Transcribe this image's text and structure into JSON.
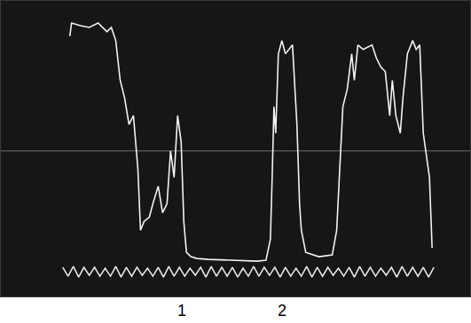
{
  "chart_data": {
    "type": "line",
    "xlim": [
      0,
      531
    ],
    "ylim": [
      0,
      335
    ],
    "xticks": [],
    "yticks": [
      165
    ],
    "grid": true,
    "tick_labels": false,
    "series": [
      {
        "color": "#f2f2f2",
        "x": [
          78,
          80,
          90,
          100,
          110,
          120,
          125,
          130,
          135,
          140,
          145,
          150,
          155,
          158,
          162,
          168,
          172,
          178,
          183,
          188,
          192,
          196,
          200,
          204,
          207,
          210,
          215,
          222,
          235,
          260,
          290,
          300,
          305,
          307,
          309,
          311,
          314,
          318,
          322,
          330,
          335,
          338,
          340,
          345,
          360,
          375,
          380,
          383,
          387,
          392,
          397,
          400,
          404,
          410,
          420,
          425,
          430,
          435,
          440,
          443,
          447,
          452,
          455,
          460,
          466,
          470,
          474,
          478,
          482,
          485,
          488
        ],
        "values": [
          295,
          310,
          307,
          305,
          310,
          300,
          305,
          290,
          245,
          225,
          195,
          205,
          145,
          75,
          85,
          90,
          105,
          125,
          95,
          105,
          165,
          135,
          205,
          175,
          85,
          50,
          45,
          43,
          42,
          41,
          40,
          41,
          65,
          135,
          215,
          185,
          275,
          290,
          275,
          285,
          195,
          105,
          75,
          50,
          45,
          47,
          75,
          135,
          215,
          235,
          275,
          245,
          285,
          280,
          285,
          270,
          260,
          255,
          205,
          245,
          205,
          185,
          225,
          275,
          290,
          280,
          285,
          185,
          155,
          135,
          55
        ]
      },
      {
        "color": "#e6e6e6",
        "x": [
          70,
          76,
          82,
          88,
          94,
          100,
          106,
          112,
          118,
          124,
          130,
          136,
          142,
          148,
          154,
          160,
          166,
          172,
          178,
          184,
          190,
          196,
          202,
          208,
          214,
          220,
          226,
          232,
          238,
          244,
          250,
          256,
          262,
          268,
          274,
          280,
          286,
          292,
          298,
          304,
          310,
          316,
          322,
          328,
          334,
          340,
          346,
          352,
          358,
          364,
          370,
          376,
          382,
          388,
          394,
          400,
          406,
          412,
          418,
          424,
          430,
          436,
          442,
          448,
          454,
          460,
          466,
          472,
          478,
          484,
          490
        ],
        "values": [
          33,
          23,
          34,
          22,
          33,
          24,
          33,
          23,
          32,
          23,
          34,
          22,
          33,
          23,
          33,
          24,
          32,
          23,
          33,
          22,
          34,
          23,
          33,
          23,
          32,
          24,
          33,
          22,
          34,
          23,
          33,
          23,
          33,
          22,
          32,
          23,
          34,
          23,
          33,
          24,
          33,
          22,
          33,
          23,
          32,
          23,
          34,
          22,
          33,
          23,
          33,
          24,
          32,
          23,
          33,
          22,
          34,
          23,
          33,
          23,
          32,
          24,
          33,
          22,
          34,
          23,
          33,
          23,
          33,
          22,
          33
        ]
      }
    ],
    "annotations": [
      {
        "text": "1",
        "x": 205
      },
      {
        "text": "2",
        "x": 318
      }
    ]
  }
}
